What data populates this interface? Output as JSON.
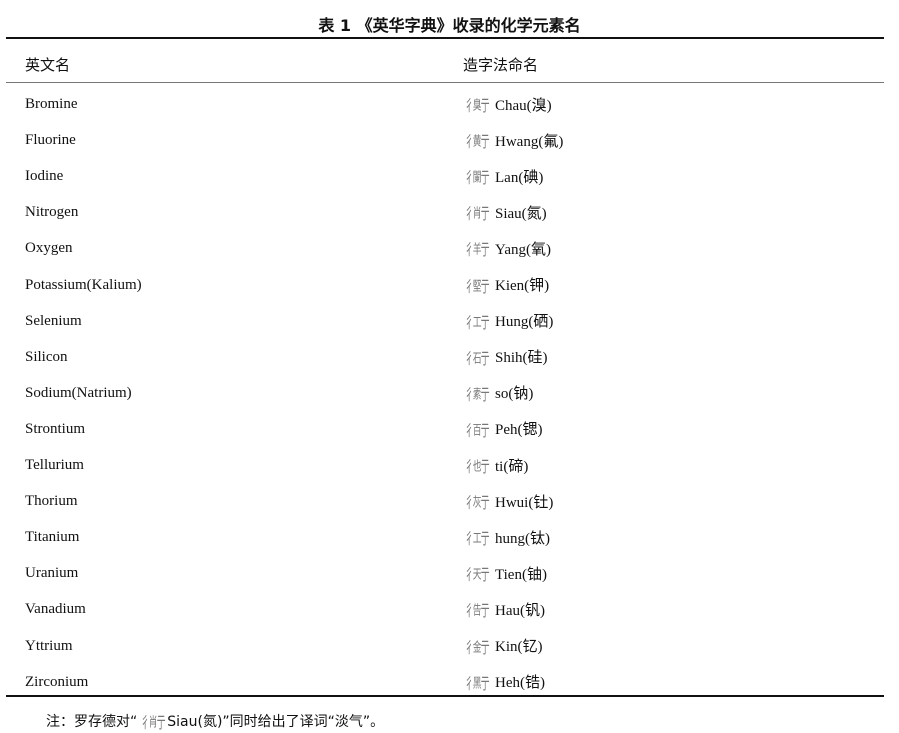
{
  "title": "表 1 《英华字典》收录的化学元素名",
  "headers": [
    "英文名",
    "造字法命名"
  ],
  "rows": [
    {
      "english": "Bromine",
      "glyph_inner": "臭",
      "name": "Chau(溴)"
    },
    {
      "english": "Fluorine",
      "glyph_inner": "黄",
      "name": "Hwang(氟)"
    },
    {
      "english": "Iodine",
      "glyph_inner": "闌",
      "name": "Lan(碘)"
    },
    {
      "english": "Nitrogen",
      "glyph_inner": "肖",
      "name": "Siau(氮)"
    },
    {
      "english": "Oxygen",
      "glyph_inner": "羊",
      "name": "Yang(氧)"
    },
    {
      "english": "Potassium(Kalium)",
      "glyph_inner": "堅",
      "name": "Kien(钾)"
    },
    {
      "english": "Selenium",
      "glyph_inner": "工",
      "name": "Hung(硒)"
    },
    {
      "english": "Silicon",
      "glyph_inner": "石",
      "name": "Shih(硅)"
    },
    {
      "english": "Sodium(Natrium)",
      "glyph_inner": "素",
      "name": "so(钠)"
    },
    {
      "english": "Strontium",
      "glyph_inner": "百",
      "name": "Peh(锶)"
    },
    {
      "english": "Tellurium",
      "glyph_inner": "也",
      "name": "ti(碲)"
    },
    {
      "english": "Thorium",
      "glyph_inner": "灰",
      "name": "Hwui(钍)"
    },
    {
      "english": "Titanium",
      "glyph_inner": "工",
      "name": "hung(钛)"
    },
    {
      "english": "Uranium",
      "glyph_inner": "天",
      "name": "Tien(铀)"
    },
    {
      "english": "Vanadium",
      "glyph_inner": "告",
      "name": "Hau(钒)"
    },
    {
      "english": "Yttrium",
      "glyph_inner": "金",
      "name": "Kin(钇)"
    },
    {
      "english": "Zirconium",
      "glyph_inner": "黑",
      "name": "Heh(锆)"
    }
  ],
  "note": {
    "prefix": "注：罗存德对“",
    "glyph_inner": "肖",
    "suffix": " Siau(氮)”同时给出了译词“淡气”。"
  }
}
